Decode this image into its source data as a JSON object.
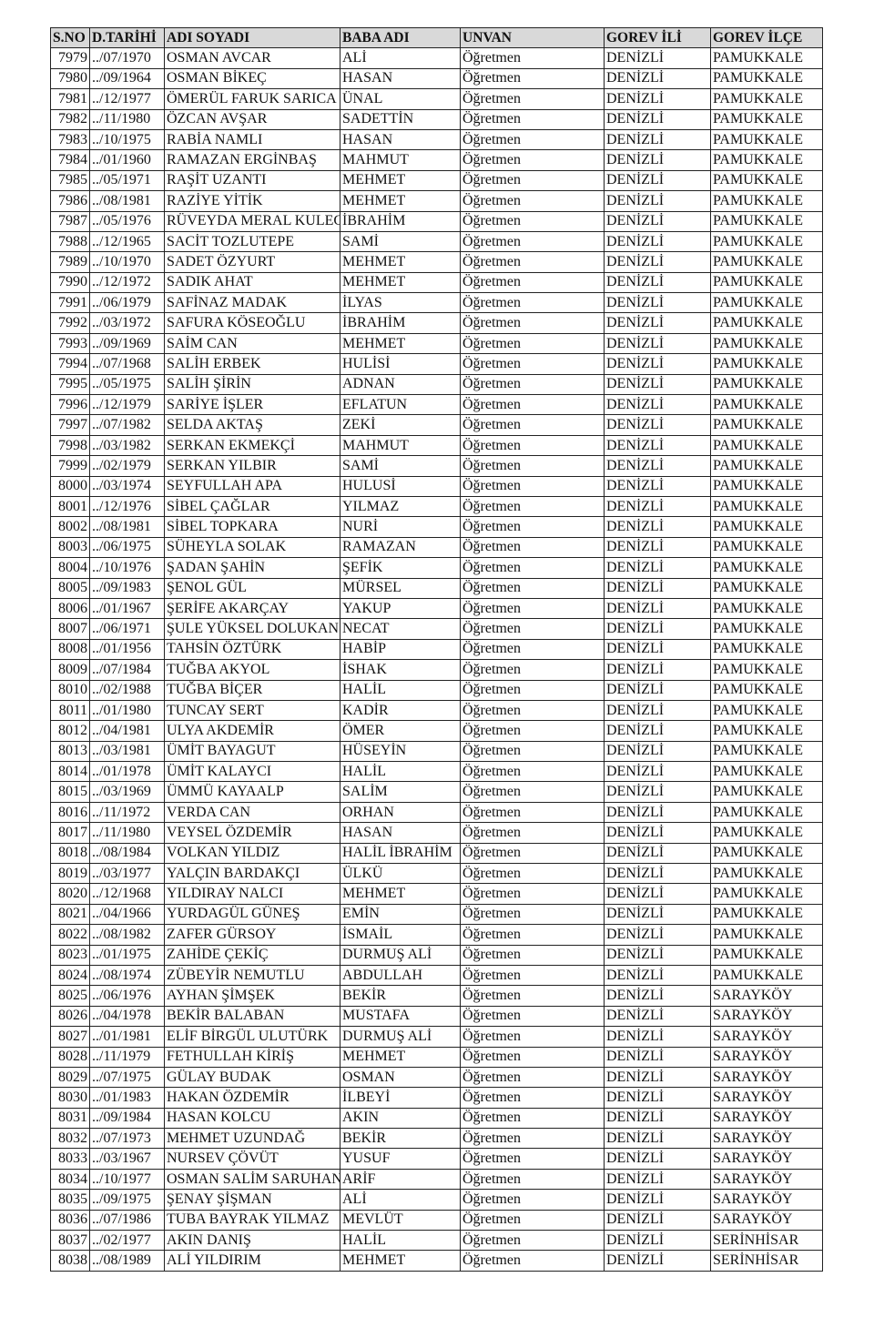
{
  "headers": [
    "S.NO",
    "D.TARİHİ",
    "ADI SOYADI",
    "BABA ADI",
    "UNVAN",
    "GOREV İLİ",
    "GOREV İLÇE"
  ],
  "rows": [
    [
      "7979",
      "../07/1970",
      "OSMAN AVCAR",
      "ALİ",
      "Öğretmen",
      "DENİZLİ",
      "PAMUKKALE"
    ],
    [
      "7980",
      "../09/1964",
      "OSMAN BİKEÇ",
      "HASAN",
      "Öğretmen",
      "DENİZLİ",
      "PAMUKKALE"
    ],
    [
      "7981",
      "../12/1977",
      "ÖMERÜL FARUK SARICA",
      "ÜNAL",
      "Öğretmen",
      "DENİZLİ",
      "PAMUKKALE"
    ],
    [
      "7982",
      "../11/1980",
      "ÖZCAN AVŞAR",
      "SADETTİN",
      "Öğretmen",
      "DENİZLİ",
      "PAMUKKALE"
    ],
    [
      "7983",
      "../10/1975",
      "RABİA NAMLI",
      "HASAN",
      "Öğretmen",
      "DENİZLİ",
      "PAMUKKALE"
    ],
    [
      "7984",
      "../01/1960",
      "RAMAZAN ERGİNBAŞ",
      "MAHMUT",
      "Öğretmen",
      "DENİZLİ",
      "PAMUKKALE"
    ],
    [
      "7985",
      "../05/1971",
      "RAŞİT UZANTI",
      "MEHMET",
      "Öğretmen",
      "DENİZLİ",
      "PAMUKKALE"
    ],
    [
      "7986",
      "../08/1981",
      "RAZİYE YİTİK",
      "MEHMET",
      "Öğretmen",
      "DENİZLİ",
      "PAMUKKALE"
    ],
    [
      "7987",
      "../05/1976",
      "RÜVEYDA MERAL KULECİ",
      "İBRAHİM",
      "Öğretmen",
      "DENİZLİ",
      "PAMUKKALE"
    ],
    [
      "7988",
      "../12/1965",
      "SACİT TOZLUTEPE",
      "SAMİ",
      "Öğretmen",
      "DENİZLİ",
      "PAMUKKALE"
    ],
    [
      "7989",
      "../10/1970",
      "SADET ÖZYURT",
      "MEHMET",
      "Öğretmen",
      "DENİZLİ",
      "PAMUKKALE"
    ],
    [
      "7990",
      "../12/1972",
      "SADIK AHAT",
      "MEHMET",
      "Öğretmen",
      "DENİZLİ",
      "PAMUKKALE"
    ],
    [
      "7991",
      "../06/1979",
      "SAFİNAZ MADAK",
      "İLYAS",
      "Öğretmen",
      "DENİZLİ",
      "PAMUKKALE"
    ],
    [
      "7992",
      "../03/1972",
      "SAFURA KÖSEOĞLU",
      "İBRAHİM",
      "Öğretmen",
      "DENİZLİ",
      "PAMUKKALE"
    ],
    [
      "7993",
      "../09/1969",
      "SAİM CAN",
      "MEHMET",
      "Öğretmen",
      "DENİZLİ",
      "PAMUKKALE"
    ],
    [
      "7994",
      "../07/1968",
      "SALİH ERBEK",
      "HULİSİ",
      "Öğretmen",
      "DENİZLİ",
      "PAMUKKALE"
    ],
    [
      "7995",
      "../05/1975",
      "SALİH ŞİRİN",
      "ADNAN",
      "Öğretmen",
      "DENİZLİ",
      "PAMUKKALE"
    ],
    [
      "7996",
      "../12/1979",
      "SARİYE İŞLER",
      "EFLATUN",
      "Öğretmen",
      "DENİZLİ",
      "PAMUKKALE"
    ],
    [
      "7997",
      "../07/1982",
      "SELDA AKTAŞ",
      "ZEKİ",
      "Öğretmen",
      "DENİZLİ",
      "PAMUKKALE"
    ],
    [
      "7998",
      "../03/1982",
      "SERKAN EKMEKÇİ",
      "MAHMUT",
      "Öğretmen",
      "DENİZLİ",
      "PAMUKKALE"
    ],
    [
      "7999",
      "../02/1979",
      "SERKAN YILBIR",
      "SAMİ",
      "Öğretmen",
      "DENİZLİ",
      "PAMUKKALE"
    ],
    [
      "8000",
      "../03/1974",
      "SEYFULLAH APA",
      "HULUSİ",
      "Öğretmen",
      "DENİZLİ",
      "PAMUKKALE"
    ],
    [
      "8001",
      "../12/1976",
      "SİBEL ÇAĞLAR",
      "YILMAZ",
      "Öğretmen",
      "DENİZLİ",
      "PAMUKKALE"
    ],
    [
      "8002",
      "../08/1981",
      "SİBEL TOPKARA",
      "NURİ",
      "Öğretmen",
      "DENİZLİ",
      "PAMUKKALE"
    ],
    [
      "8003",
      "../06/1975",
      "SÜHEYLA SOLAK",
      "RAMAZAN",
      "Öğretmen",
      "DENİZLİ",
      "PAMUKKALE"
    ],
    [
      "8004",
      "../10/1976",
      "ŞADAN ŞAHİN",
      "ŞEFİK",
      "Öğretmen",
      "DENİZLİ",
      "PAMUKKALE"
    ],
    [
      "8005",
      "../09/1983",
      "ŞENOL GÜL",
      "MÜRSEL",
      "Öğretmen",
      "DENİZLİ",
      "PAMUKKALE"
    ],
    [
      "8006",
      "../01/1967",
      "ŞERİFE AKARÇAY",
      "YAKUP",
      "Öğretmen",
      "DENİZLİ",
      "PAMUKKALE"
    ],
    [
      "8007",
      "../06/1971",
      "ŞULE YÜKSEL DOLUKAN",
      "NECAT",
      "Öğretmen",
      "DENİZLİ",
      "PAMUKKALE"
    ],
    [
      "8008",
      "../01/1956",
      "TAHSİN ÖZTÜRK",
      "HABİP",
      "Öğretmen",
      "DENİZLİ",
      "PAMUKKALE"
    ],
    [
      "8009",
      "../07/1984",
      "TUĞBA AKYOL",
      "İSHAK",
      "Öğretmen",
      "DENİZLİ",
      "PAMUKKALE"
    ],
    [
      "8010",
      "../02/1988",
      "TUĞBA BİÇER",
      "HALİL",
      "Öğretmen",
      "DENİZLİ",
      "PAMUKKALE"
    ],
    [
      "8011",
      "../01/1980",
      "TUNCAY SERT",
      "KADİR",
      "Öğretmen",
      "DENİZLİ",
      "PAMUKKALE"
    ],
    [
      "8012",
      "../04/1981",
      "ULYA AKDEMİR",
      "ÖMER",
      "Öğretmen",
      "DENİZLİ",
      "PAMUKKALE"
    ],
    [
      "8013",
      "../03/1981",
      "ÜMİT BAYAGUT",
      "HÜSEYİN",
      "Öğretmen",
      "DENİZLİ",
      "PAMUKKALE"
    ],
    [
      "8014",
      "../01/1978",
      "ÜMİT KALAYCI",
      "HALİL",
      "Öğretmen",
      "DENİZLİ",
      "PAMUKKALE"
    ],
    [
      "8015",
      "../03/1969",
      "ÜMMÜ KAYAALP",
      "SALİM",
      "Öğretmen",
      "DENİZLİ",
      "PAMUKKALE"
    ],
    [
      "8016",
      "../11/1972",
      "VERDA CAN",
      "ORHAN",
      "Öğretmen",
      "DENİZLİ",
      "PAMUKKALE"
    ],
    [
      "8017",
      "../11/1980",
      "VEYSEL ÖZDEMİR",
      "HASAN",
      "Öğretmen",
      "DENİZLİ",
      "PAMUKKALE"
    ],
    [
      "8018",
      "../08/1984",
      "VOLKAN YILDIZ",
      "HALİL İBRAHİM",
      "Öğretmen",
      "DENİZLİ",
      "PAMUKKALE"
    ],
    [
      "8019",
      "../03/1977",
      "YALÇIN BARDAKÇI",
      "ÜLKÜ",
      "Öğretmen",
      "DENİZLİ",
      "PAMUKKALE"
    ],
    [
      "8020",
      "../12/1968",
      "YILDIRAY NALCI",
      "MEHMET",
      "Öğretmen",
      "DENİZLİ",
      "PAMUKKALE"
    ],
    [
      "8021",
      "../04/1966",
      "YURDAGÜL GÜNEŞ",
      "EMİN",
      "Öğretmen",
      "DENİZLİ",
      "PAMUKKALE"
    ],
    [
      "8022",
      "../08/1982",
      "ZAFER GÜRSOY",
      "İSMAİL",
      "Öğretmen",
      "DENİZLİ",
      "PAMUKKALE"
    ],
    [
      "8023",
      "../01/1975",
      "ZAHİDE ÇEKİÇ",
      "DURMUŞ ALİ",
      "Öğretmen",
      "DENİZLİ",
      "PAMUKKALE"
    ],
    [
      "8024",
      "../08/1974",
      "ZÜBEYİR NEMUTLU",
      "ABDULLAH",
      "Öğretmen",
      "DENİZLİ",
      "PAMUKKALE"
    ],
    [
      "8025",
      "../06/1976",
      "AYHAN ŞİMŞEK",
      "BEKİR",
      "Öğretmen",
      "DENİZLİ",
      "SARAYKÖY"
    ],
    [
      "8026",
      "../04/1978",
      "BEKİR BALABAN",
      "MUSTAFA",
      "Öğretmen",
      "DENİZLİ",
      "SARAYKÖY"
    ],
    [
      "8027",
      "../01/1981",
      "ELİF BİRGÜL ULUTÜRK",
      "DURMUŞ ALİ",
      "Öğretmen",
      "DENİZLİ",
      "SARAYKÖY"
    ],
    [
      "8028",
      "../11/1979",
      "FETHULLAH KİRİŞ",
      "MEHMET",
      "Öğretmen",
      "DENİZLİ",
      "SARAYKÖY"
    ],
    [
      "8029",
      "../07/1975",
      "GÜLAY BUDAK",
      "OSMAN",
      "Öğretmen",
      "DENİZLİ",
      "SARAYKÖY"
    ],
    [
      "8030",
      "../01/1983",
      "HAKAN ÖZDEMİR",
      "İLBEYİ",
      "Öğretmen",
      "DENİZLİ",
      "SARAYKÖY"
    ],
    [
      "8031",
      "../09/1984",
      "HASAN KOLCU",
      "AKIN",
      "Öğretmen",
      "DENİZLİ",
      "SARAYKÖY"
    ],
    [
      "8032",
      "../07/1973",
      "MEHMET UZUNDAĞ",
      "BEKİR",
      "Öğretmen",
      "DENİZLİ",
      "SARAYKÖY"
    ],
    [
      "8033",
      "../03/1967",
      "NURSEV ÇÖVÜT",
      "YUSUF",
      "Öğretmen",
      "DENİZLİ",
      "SARAYKÖY"
    ],
    [
      "8034",
      "../10/1977",
      "OSMAN SALİM SARUHAN",
      "ARİF",
      "Öğretmen",
      "DENİZLİ",
      "SARAYKÖY"
    ],
    [
      "8035",
      "../09/1975",
      "ŞENAY ŞİŞMAN",
      "ALİ",
      "Öğretmen",
      "DENİZLİ",
      "SARAYKÖY"
    ],
    [
      "8036",
      "../07/1986",
      "TUBA BAYRAK YILMAZ",
      "MEVLÜT",
      "Öğretmen",
      "DENİZLİ",
      "SARAYKÖY"
    ],
    [
      "8037",
      "../02/1977",
      "AKIN DANIŞ",
      "HALİL",
      "Öğretmen",
      "DENİZLİ",
      "SERİNHİSAR"
    ],
    [
      "8038",
      "../08/1989",
      "ALİ YILDIRIM",
      "MEHMET",
      "Öğretmen",
      "DENİZLİ",
      "SERİNHİSAR"
    ]
  ]
}
